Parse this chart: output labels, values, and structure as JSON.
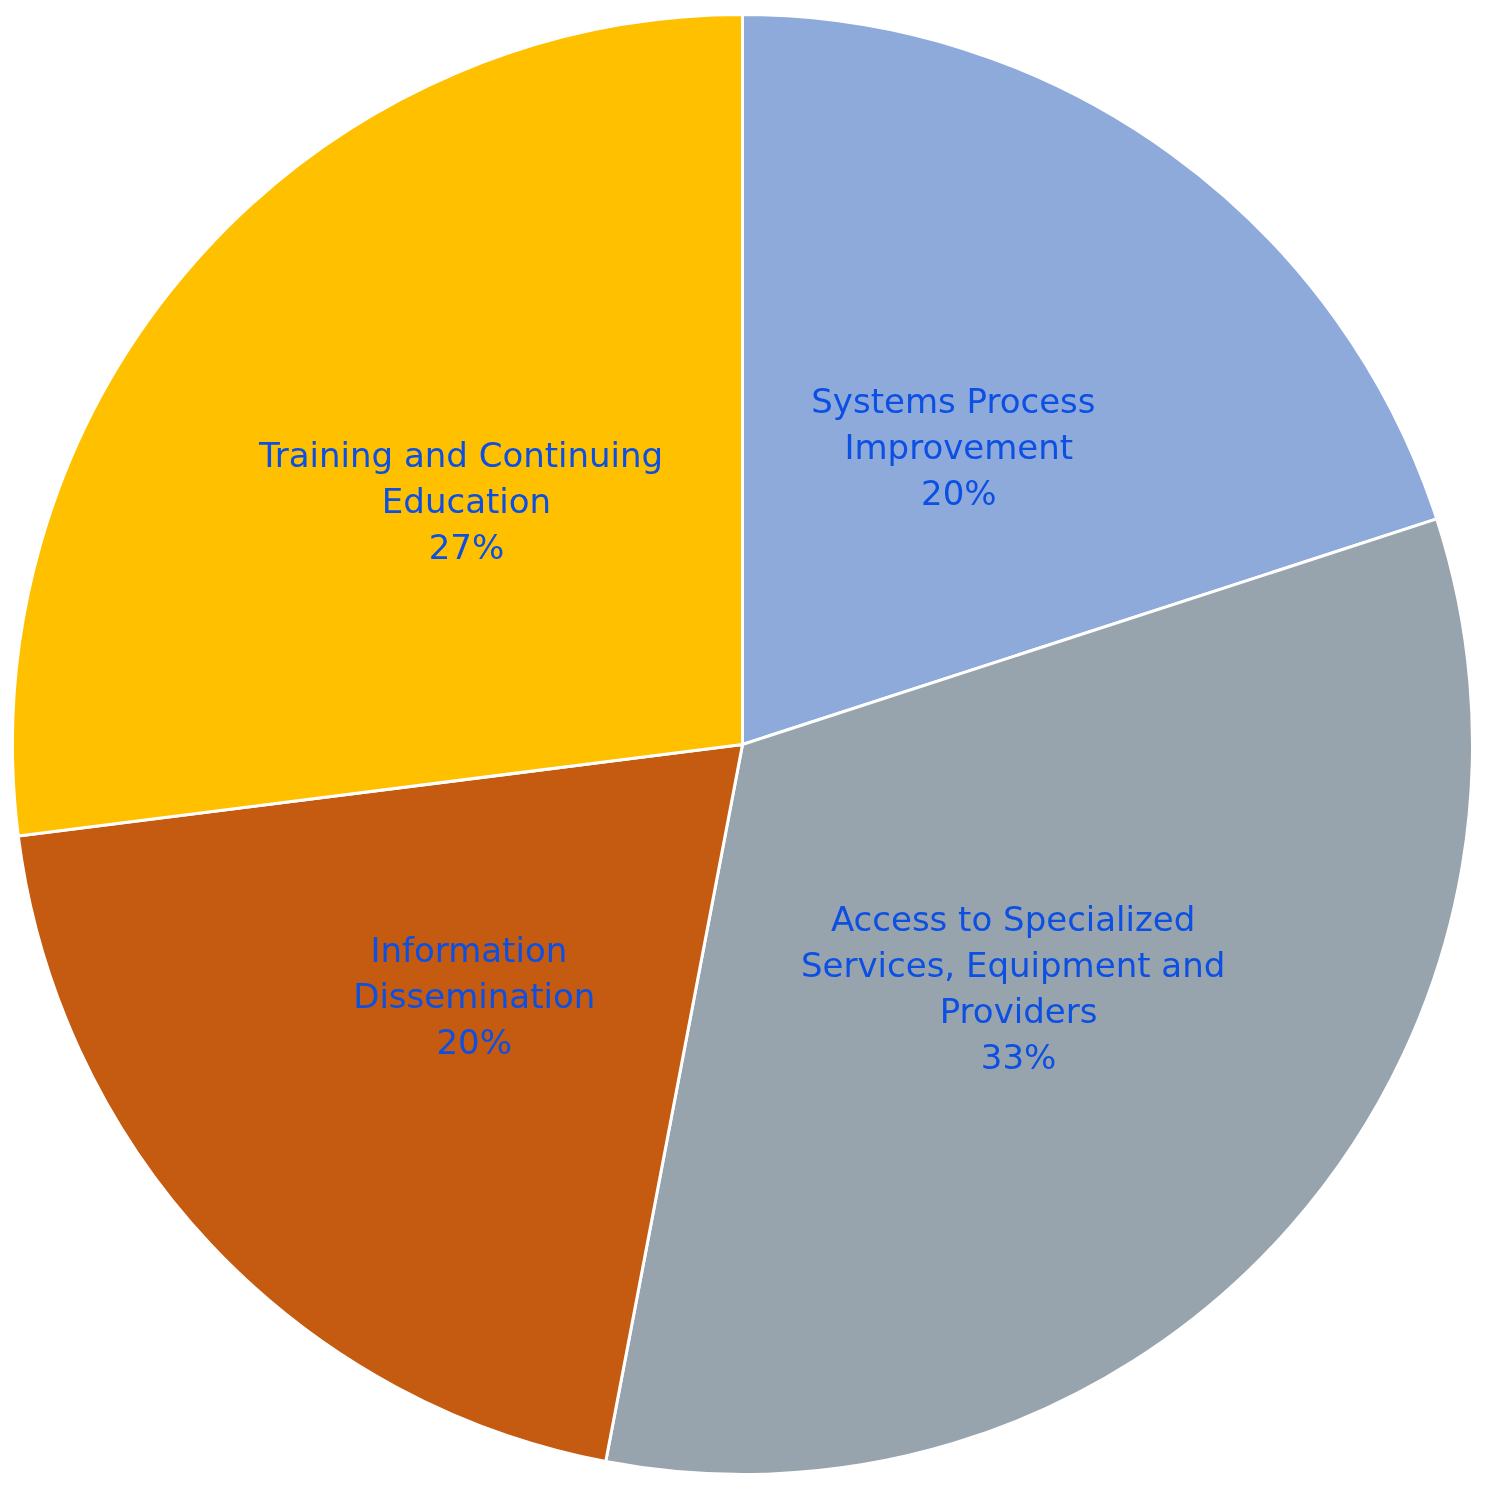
{
  "chart_data": {
    "type": "pie",
    "categories": [
      "Systems Process Improvement",
      "Access to Specialized Services, Equipment and Providers",
      "Information Dissemination",
      "Training and Continuing Education"
    ],
    "values": [
      20,
      33,
      20,
      27
    ],
    "value_labels": [
      "20%",
      "33%",
      "20%",
      "27%"
    ],
    "colors": [
      "#8eaadb",
      "#98a4ad",
      "#c55a11",
      "#ffc000"
    ]
  }
}
